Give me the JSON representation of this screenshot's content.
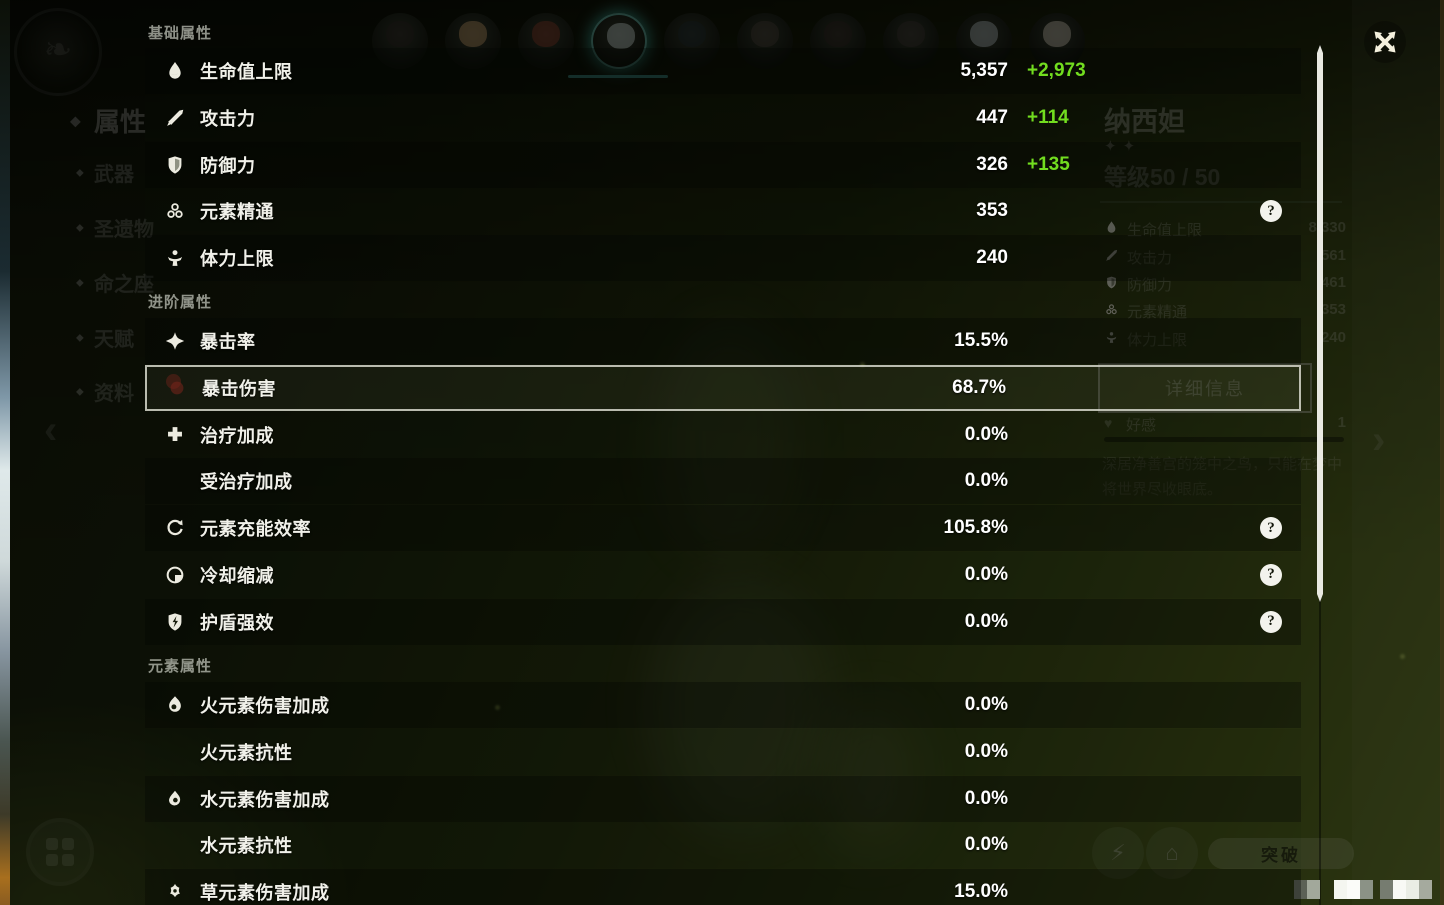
{
  "overlay": {
    "help_glyph": "?",
    "sections": [
      {
        "title": "基础属性",
        "rows": [
          {
            "icon": "hp-icon",
            "label": "生命值上限",
            "value": "5,357",
            "bonus": "+2,973",
            "shade": "dark"
          },
          {
            "icon": "atk-icon",
            "label": "攻击力",
            "value": "447",
            "bonus": "+114",
            "shade": "light"
          },
          {
            "icon": "def-icon",
            "label": "防御力",
            "value": "326",
            "bonus": "+135",
            "shade": "dark"
          },
          {
            "icon": "elemental-mastery-icon",
            "label": "元素精通",
            "value": "353",
            "help": true,
            "shade": "light"
          },
          {
            "icon": "stamina-icon",
            "label": "体力上限",
            "value": "240",
            "shade": "dark"
          }
        ]
      },
      {
        "title": "进阶属性",
        "rows": [
          {
            "icon": "crit-rate-icon",
            "label": "暴击率",
            "value": "15.5%",
            "shade": "dark"
          },
          {
            "icon": "crit-dmg-icon",
            "label": "暴击伤害",
            "value": "68.7%",
            "selected": true
          },
          {
            "icon": "healing-bonus-icon",
            "label": "治疗加成",
            "value": "0.0%",
            "shade": "light"
          },
          {
            "icon": "",
            "label": "受治疗加成",
            "value": "0.0%",
            "shade": "dark"
          },
          {
            "icon": "energy-recharge-icon",
            "label": "元素充能效率",
            "value": "105.8%",
            "help": true,
            "shade": "dark"
          },
          {
            "icon": "cooldown-reduction-icon",
            "label": "冷却缩减",
            "value": "0.0%",
            "help": true,
            "shade": "light"
          },
          {
            "icon": "shield-strength-icon",
            "label": "护盾强效",
            "value": "0.0%",
            "help": true,
            "shade": "dark"
          }
        ]
      },
      {
        "title": "元素属性",
        "rows": [
          {
            "icon": "pyro-icon",
            "label": "火元素伤害加成",
            "value": "0.0%",
            "shade": "dark"
          },
          {
            "icon": "",
            "label": "火元素抗性",
            "value": "0.0%",
            "shade": "light"
          },
          {
            "icon": "hydro-icon",
            "label": "水元素伤害加成",
            "value": "0.0%",
            "shade": "dark"
          },
          {
            "icon": "",
            "label": "水元素抗性",
            "value": "0.0%",
            "shade": "light"
          },
          {
            "icon": "dendro-icon",
            "label": "草元素伤害加成",
            "value": "15.0%",
            "shade": "dark"
          }
        ]
      }
    ]
  },
  "background": {
    "nav_items": [
      {
        "label": "属性",
        "active": true
      },
      {
        "label": "武器"
      },
      {
        "label": "圣遗物"
      },
      {
        "label": "命之座"
      },
      {
        "label": "天赋"
      },
      {
        "label": "资料"
      }
    ],
    "avatars": {
      "count": 10,
      "selected_index": 3
    },
    "character_panel": {
      "name": "纳西妲",
      "stars": "✦✦",
      "level": "等级50 / 50",
      "stats": [
        {
          "icon": "hp-icon",
          "label": "生命值上限",
          "value": "8,330"
        },
        {
          "icon": "atk-icon",
          "label": "攻击力",
          "value": "561"
        },
        {
          "icon": "def-icon",
          "label": "防御力",
          "value": "461"
        },
        {
          "icon": "elemental-mastery-icon",
          "label": "元素精通",
          "value": "353"
        },
        {
          "icon": "stamina-icon",
          "label": "体力上限",
          "value": "240"
        }
      ],
      "details_button": "详细信息",
      "friendship_label": "好感",
      "friendship_level": "1",
      "description_line1": "深居净善宫的笼中之鸟，只能在梦中",
      "description_line2": "将世界尽收眼底。"
    },
    "ascend_button": "突破"
  },
  "colors": {
    "bonus_green": "#72dd1f",
    "selection_border": "#d0d1c6",
    "avatar_ring_teal": "#4fb3a6"
  }
}
